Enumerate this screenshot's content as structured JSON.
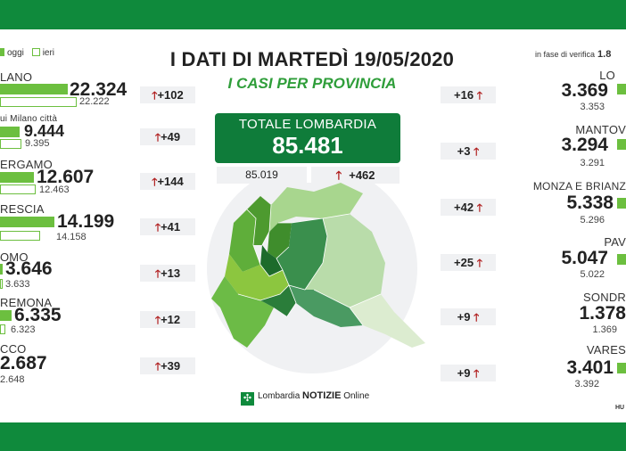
{
  "header": {
    "title": "I DATI DI MARTEDÌ 19/05/2020",
    "subtitle": "I CASI PER PROVINCIA"
  },
  "legend": {
    "today": "oggi",
    "yesterday": "ieri"
  },
  "verify": {
    "label": "in fase di verifica",
    "value": "1.8"
  },
  "total": {
    "label": "TOTALE LOMBARDIA",
    "value": "85.481",
    "previous": "85.019",
    "increment": "+462"
  },
  "left_provinces": [
    {
      "name": "LANO",
      "today": "22.324",
      "yesterday": "22.222",
      "increment": "+102"
    },
    {
      "name": "ui Milano città",
      "today": "9.444",
      "yesterday": "9.395",
      "increment": "+49"
    },
    {
      "name": "ERGAMO",
      "today": "12.607",
      "yesterday": "12.463",
      "increment": "+144"
    },
    {
      "name": "RESCIA",
      "today": "14.199",
      "yesterday": "14.158",
      "increment": "+41"
    },
    {
      "name": "OMO",
      "today": "3.646",
      "yesterday": "3.633",
      "increment": "+13"
    },
    {
      "name": "REMONA",
      "today": "6.335",
      "yesterday": "6.323",
      "increment": "+12"
    },
    {
      "name": "CCO",
      "today": "2.687",
      "yesterday": "2.648",
      "increment": "+39"
    }
  ],
  "right_provinces": [
    {
      "name": "LO",
      "today": "3.369",
      "yesterday": "3.353",
      "increment": "+16"
    },
    {
      "name": "MANTOV",
      "today": "3.294",
      "yesterday": "3.291",
      "increment": "+3"
    },
    {
      "name": "MONZA E BRIANZ",
      "today": "5.338",
      "yesterday": "5.296",
      "increment": "+42"
    },
    {
      "name": "PAV",
      "today": "5.047",
      "yesterday": "5.022",
      "increment": "+25"
    },
    {
      "name": "SONDR",
      "today": "1.378",
      "yesterday": "1.369",
      "increment": "+9"
    },
    {
      "name": "VARES",
      "today": "3.401",
      "yesterday": "3.392",
      "increment": "+9"
    }
  ],
  "logo": {
    "brand": "Lombardia",
    "notizie": "NOTIZIE",
    "online": "Online"
  },
  "corner_mark": "HU",
  "colors": {
    "brand_green": "#0f8a3c",
    "bar_green": "#6cbf3f",
    "arrow_red": "#b01e1e"
  }
}
